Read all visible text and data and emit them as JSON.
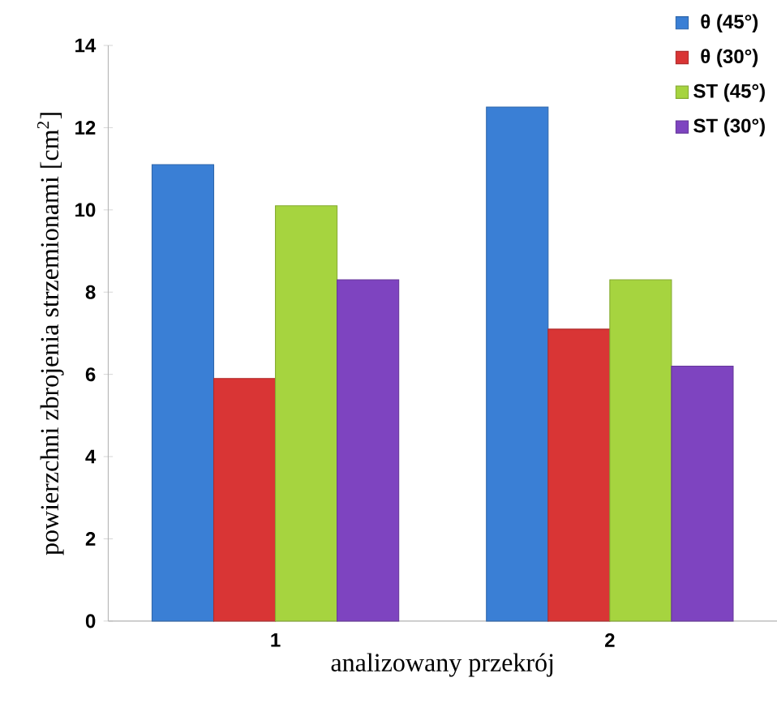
{
  "chart_data": {
    "type": "bar",
    "xlabel": "analizowany przekrój",
    "ylabel": "powierzchni zbrojenia strzemionami [cm$^{2}$]",
    "categories": [
      "1",
      "2"
    ],
    "series": [
      {
        "name": "θ (45°)",
        "color": "#3a7fd5",
        "values": [
          11.1,
          12.5
        ]
      },
      {
        "name": "θ (30°)",
        "color": "#d93535",
        "values": [
          5.9,
          7.1
        ]
      },
      {
        "name": "ST (45°)",
        "color": "#a6d43f",
        "values": [
          10.1,
          8.3
        ]
      },
      {
        "name": "ST (30°)",
        "color": "#7e44c0",
        "values": [
          8.3,
          6.2
        ]
      }
    ],
    "ylim": [
      0,
      14
    ],
    "yticks": [
      0,
      2,
      4,
      6,
      8,
      10,
      12,
      14
    ],
    "legend": "top right",
    "grid": false
  }
}
